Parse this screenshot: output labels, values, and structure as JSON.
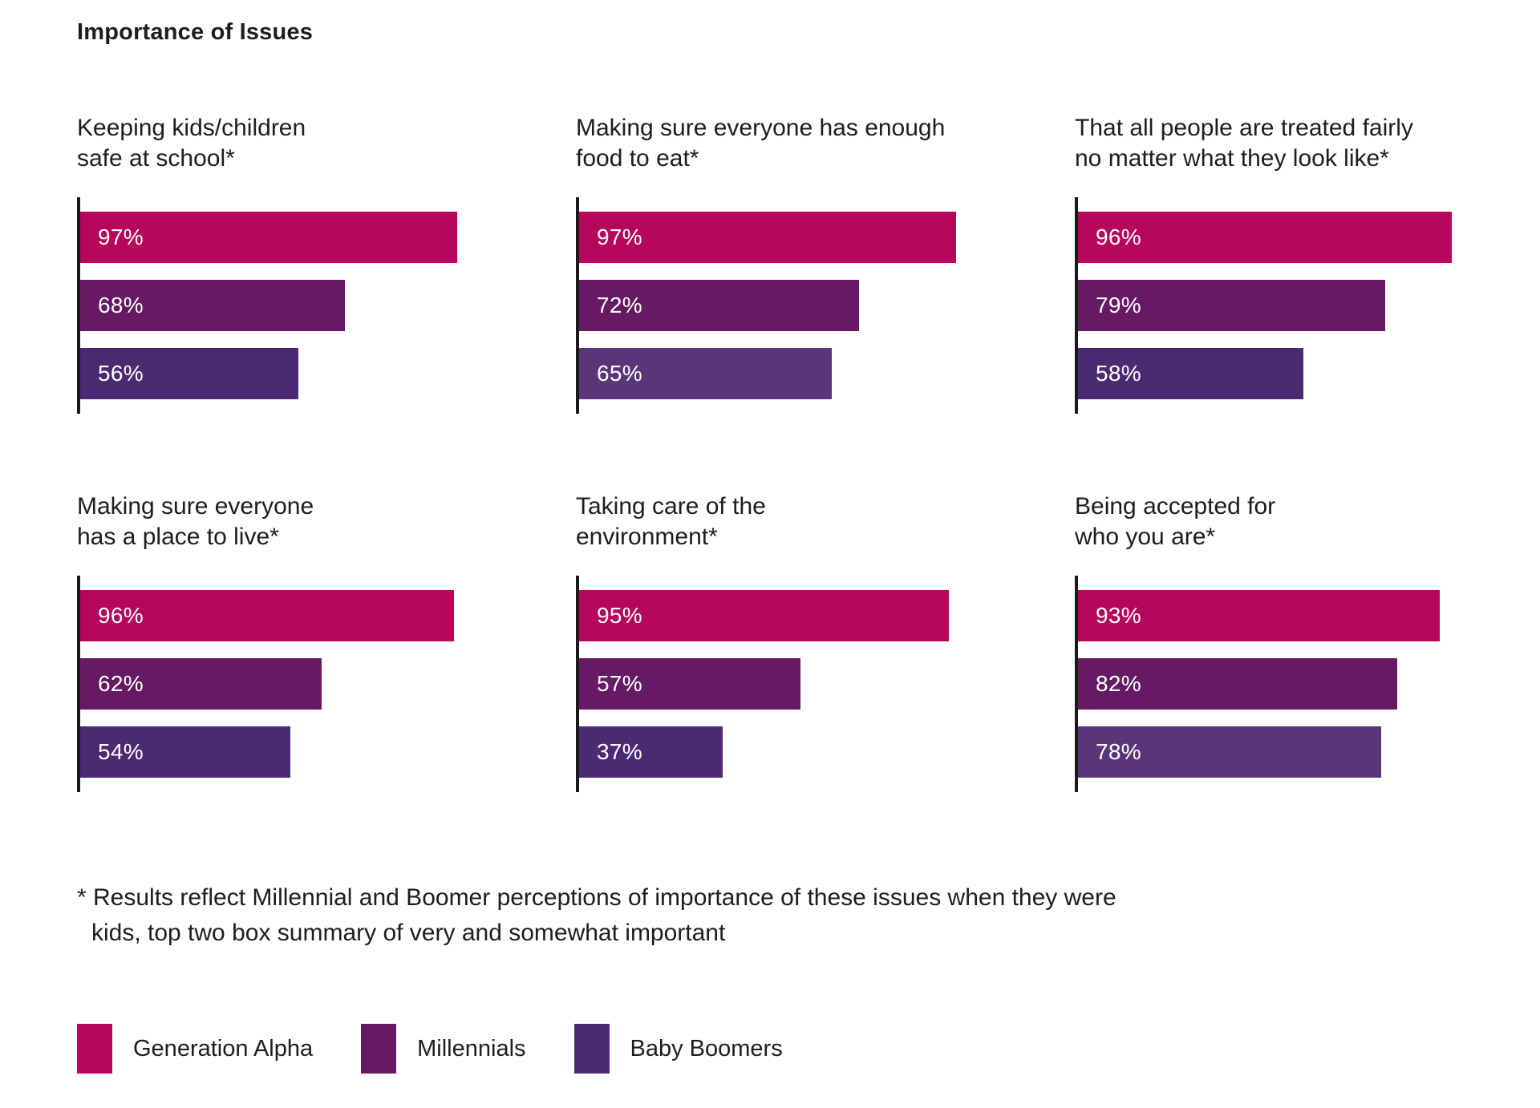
{
  "page_title": "Importance of Issues",
  "chart_data": {
    "type": "bar",
    "orientation": "horizontal",
    "value_axis_range": [
      0,
      100
    ],
    "unit": "%",
    "grid": false,
    "legend_position": "bottom",
    "series": [
      "Generation Alpha",
      "Millennials",
      "Baby Boomers"
    ],
    "charts": [
      {
        "title": "Keeping kids/children\nsafe at school*",
        "values": [
          97,
          68,
          56
        ],
        "labels": [
          "97%",
          "68%",
          "56%"
        ],
        "colors": [
          "#B6065B",
          "#651A63",
          "#4B2A71"
        ]
      },
      {
        "title": "Making sure everyone has enough\nfood to eat*",
        "values": [
          97,
          72,
          65
        ],
        "labels": [
          "97%",
          "72%",
          "65%"
        ],
        "colors": [
          "#B6065B",
          "#651A63",
          "#5A3678"
        ]
      },
      {
        "title": "That all people are treated fairly\nno matter what they look like*",
        "values": [
          96,
          79,
          58
        ],
        "labels": [
          "96%",
          "79%",
          "58%"
        ],
        "colors": [
          "#B6065B",
          "#651A63",
          "#4B2A71"
        ]
      },
      {
        "title": "Making sure everyone\nhas a place to live*",
        "values": [
          96,
          62,
          54
        ],
        "labels": [
          "96%",
          "62%",
          "54%"
        ],
        "colors": [
          "#B6065B",
          "#651A63",
          "#4B2A71"
        ]
      },
      {
        "title": "Taking care of the\nenvironment*",
        "values": [
          95,
          57,
          37
        ],
        "labels": [
          "95%",
          "57%",
          "37%"
        ],
        "colors": [
          "#B6065B",
          "#651A63",
          "#4B2A71"
        ]
      },
      {
        "title": "Being accepted for\nwho you are*",
        "values": [
          93,
          82,
          78
        ],
        "labels": [
          "93%",
          "82%",
          "78%"
        ],
        "colors": [
          "#B6065B",
          "#651A63",
          "#5A3678"
        ]
      }
    ]
  },
  "footnote": {
    "line1": "* Results reflect Millennial and Boomer perceptions of importance of these issues when they were",
    "line2": "kids, top two box summary of very and somewhat important"
  },
  "legend": {
    "items": [
      {
        "label": "Generation Alpha",
        "color": "#B6065B"
      },
      {
        "label": "Millennials",
        "color": "#651A63"
      },
      {
        "label": "Baby Boomers",
        "color": "#4B2A71"
      }
    ]
  },
  "colors": {
    "background": "#FFFFFF",
    "text": "#1D1D1D",
    "axis": "#1A1A1A",
    "bar_label_text": "#FFFFFF",
    "generation_alpha": "#B6065B",
    "millennials": "#651A63",
    "baby_boomers": "#4B2A71",
    "baby_boomers_light": "#5A3678"
  }
}
